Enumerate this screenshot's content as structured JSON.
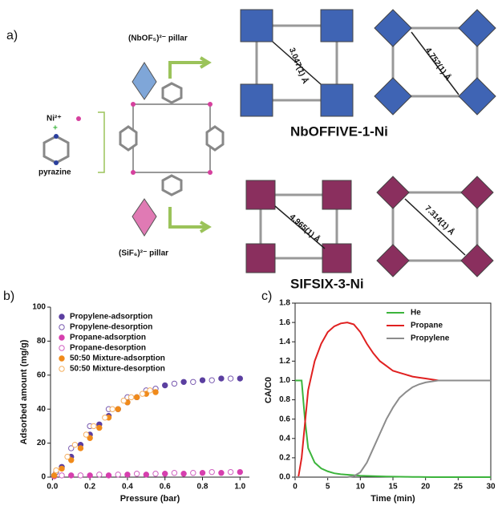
{
  "panel_a": {
    "label": "a)",
    "nb_pillar": "(NbOF₅)²⁻ pillar",
    "ni": "Ni²⁺",
    "plus": "+",
    "pyrazine": "pyrazine",
    "si_pillar": "(SiF₆)²⁻ pillar",
    "nb_name": "NbOFFIVE-1-Ni",
    "si_name": "SIFSIX-3-Ni",
    "distances": [
      "3.047(1) Å",
      "4.752(1) Å",
      "4.965(1) Å",
      "7.314(1) Å"
    ]
  },
  "chart_data": [
    {
      "type": "scatter",
      "panel_label": "b)",
      "x_label": "Pressure (bar)",
      "y_label": "Adsorbed amount (mg/g)",
      "xlim": [
        -0.01,
        1.05
      ],
      "ylim": [
        0,
        100
      ],
      "xticks": [
        {
          "value": 0,
          "label": "0.0"
        },
        {
          "value": 0.2,
          "label": "0.2"
        },
        {
          "value": 0.4,
          "label": "0.4"
        },
        {
          "value": 0.6,
          "label": "0.6"
        },
        {
          "value": 0.8,
          "label": "0.8"
        },
        {
          "value": 1,
          "label": "1.0"
        }
      ],
      "yticks": [
        0,
        20,
        40,
        60,
        80,
        100
      ],
      "legend": "upper left",
      "box": false,
      "series": [
        {
          "name": "Propylene-adsorption",
          "color": "#5b3fa0",
          "filled": true,
          "x": [
            0.01,
            0.05,
            0.1,
            0.15,
            0.2,
            0.25,
            0.3,
            0.35,
            0.4,
            0.45,
            0.5,
            0.6,
            0.7,
            0.8,
            0.9,
            1.0
          ],
          "values": [
            1,
            6,
            12,
            19,
            25,
            31,
            36,
            40,
            44,
            47,
            50,
            54,
            56,
            57,
            58,
            58
          ]
        },
        {
          "name": "Propylene-desorption",
          "color": "#7a5bb0",
          "filled": false,
          "x": [
            0.02,
            0.1,
            0.2,
            0.3,
            0.4,
            0.5,
            0.55,
            0.65,
            0.75,
            0.85,
            0.95
          ],
          "values": [
            3,
            17,
            30,
            40,
            47,
            51,
            52,
            55,
            56,
            57,
            58
          ]
        },
        {
          "name": "Propane-adsorption",
          "color": "#d63fae",
          "filled": true,
          "x": [
            0.01,
            0.1,
            0.2,
            0.3,
            0.4,
            0.5,
            0.6,
            0.7,
            0.8,
            0.9,
            1.0
          ],
          "values": [
            0.5,
            1,
            1,
            1,
            1.5,
            1.5,
            2,
            2,
            2.5,
            2.5,
            3
          ]
        },
        {
          "name": "Propane-desorption",
          "color": "#d060c0",
          "filled": false,
          "x": [
            0.05,
            0.15,
            0.25,
            0.35,
            0.45,
            0.55,
            0.65,
            0.75,
            0.85,
            0.95
          ],
          "values": [
            1,
            1,
            1.5,
            1.5,
            2,
            2,
            2.5,
            2.5,
            3,
            3
          ]
        },
        {
          "name": "50:50 Mixture-adsorption",
          "color": "#f08a1a",
          "filled": true,
          "x": [
            0.01,
            0.05,
            0.1,
            0.15,
            0.2,
            0.25,
            0.3,
            0.35,
            0.4,
            0.45,
            0.5,
            0.55
          ],
          "values": [
            1,
            5,
            10,
            17,
            23,
            29,
            35,
            40,
            44,
            47,
            49,
            50
          ]
        },
        {
          "name": "50:50 Mixture-desorption",
          "color": "#f5b060",
          "filled": false,
          "x": [
            0.02,
            0.08,
            0.12,
            0.18,
            0.22,
            0.28,
            0.32,
            0.38,
            0.42,
            0.48,
            0.52
          ],
          "values": [
            4,
            12,
            19,
            25,
            30,
            35,
            40,
            45,
            47,
            49,
            51
          ]
        }
      ]
    },
    {
      "type": "line",
      "panel_label": "c)",
      "x_label": "Time (min)",
      "y_label": "CA/C0",
      "xlim": [
        0,
        30
      ],
      "ylim": [
        0,
        1.8
      ],
      "xticks": [
        0,
        5,
        10,
        15,
        20,
        25,
        30
      ],
      "yticks": [
        {
          "value": 0,
          "label": "0.0"
        },
        {
          "value": 0.2,
          "label": "0.2"
        },
        {
          "value": 0.4,
          "label": "0.4"
        },
        {
          "value": 0.6,
          "label": "0.6"
        },
        {
          "value": 0.8,
          "label": "0.8"
        },
        {
          "value": 1,
          "label": "1.0"
        },
        {
          "value": 1.2,
          "label": "1.2"
        },
        {
          "value": 1.4,
          "label": "1.4"
        },
        {
          "value": 1.6,
          "label": "1.6"
        },
        {
          "value": 1.8,
          "label": "1.8"
        }
      ],
      "legend": "upper right",
      "box": true,
      "x": [
        0,
        0.5,
        1,
        1.5,
        2,
        3,
        4,
        5,
        6,
        7,
        8,
        9,
        10,
        11,
        12,
        13,
        14,
        15,
        16,
        17,
        18,
        19,
        20,
        21,
        22,
        25,
        30
      ],
      "series": [
        {
          "name": "He",
          "color": "#3cb43c",
          "values": [
            1,
            1,
            1,
            0.6,
            0.3,
            0.15,
            0.09,
            0.06,
            0.04,
            0.03,
            0.025,
            0.02,
            0.015,
            0.012,
            0.01,
            0.008,
            0.006,
            0.005,
            0.004,
            0.003,
            0.002,
            0.002,
            0.001,
            0,
            0,
            0,
            0
          ]
        },
        {
          "name": "Propane",
          "color": "#e02020",
          "values": [
            0,
            0,
            0.2,
            0.55,
            0.9,
            1.2,
            1.38,
            1.5,
            1.56,
            1.59,
            1.6,
            1.58,
            1.5,
            1.38,
            1.28,
            1.2,
            1.15,
            1.1,
            1.08,
            1.06,
            1.04,
            1.03,
            1.02,
            1.01,
            1.0,
            1.0,
            1.0
          ]
        },
        {
          "name": "Propylene",
          "color": "#8c8c8c",
          "values": [
            0,
            0,
            0,
            0,
            0,
            0,
            0,
            0,
            0,
            0,
            0,
            0.01,
            0.05,
            0.15,
            0.3,
            0.45,
            0.6,
            0.72,
            0.82,
            0.88,
            0.93,
            0.96,
            0.98,
            0.99,
            1.0,
            1.0,
            1.0
          ]
        }
      ]
    }
  ]
}
